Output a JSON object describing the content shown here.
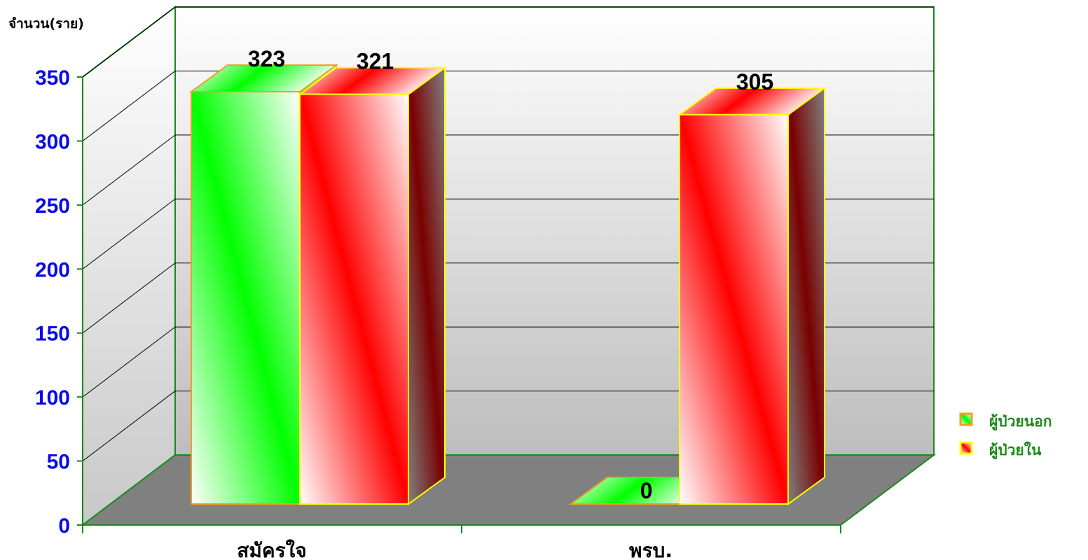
{
  "chart_data": {
    "type": "bar",
    "ylabel": "จำนวน(ราย)",
    "xlabel": "",
    "categories": [
      "สมัครใจ",
      "พรบ."
    ],
    "yticks": [
      "0",
      "50",
      "100",
      "150",
      "200",
      "250",
      "300",
      "350"
    ],
    "ylim": [
      0,
      350
    ],
    "series": [
      {
        "name": "ผู้ป่วยนอก",
        "values": [
          323,
          0
        ],
        "labels": [
          "323",
          "0"
        ]
      },
      {
        "name": "ผู้ป่วยใน",
        "values": [
          321,
          305
        ],
        "labels": [
          "321",
          "305"
        ]
      }
    ],
    "legend_position": "right",
    "grid": true,
    "colors": {
      "outpatient": "#00ff00",
      "inpatient": "#ff0000",
      "outpatient_border": "#f0a020",
      "inpatient_border": "#ffff00",
      "axis": "#1a8a1a",
      "floor": "#808080",
      "ytick": "#0a0ae8",
      "legend_text": "#1a8a1a"
    }
  }
}
